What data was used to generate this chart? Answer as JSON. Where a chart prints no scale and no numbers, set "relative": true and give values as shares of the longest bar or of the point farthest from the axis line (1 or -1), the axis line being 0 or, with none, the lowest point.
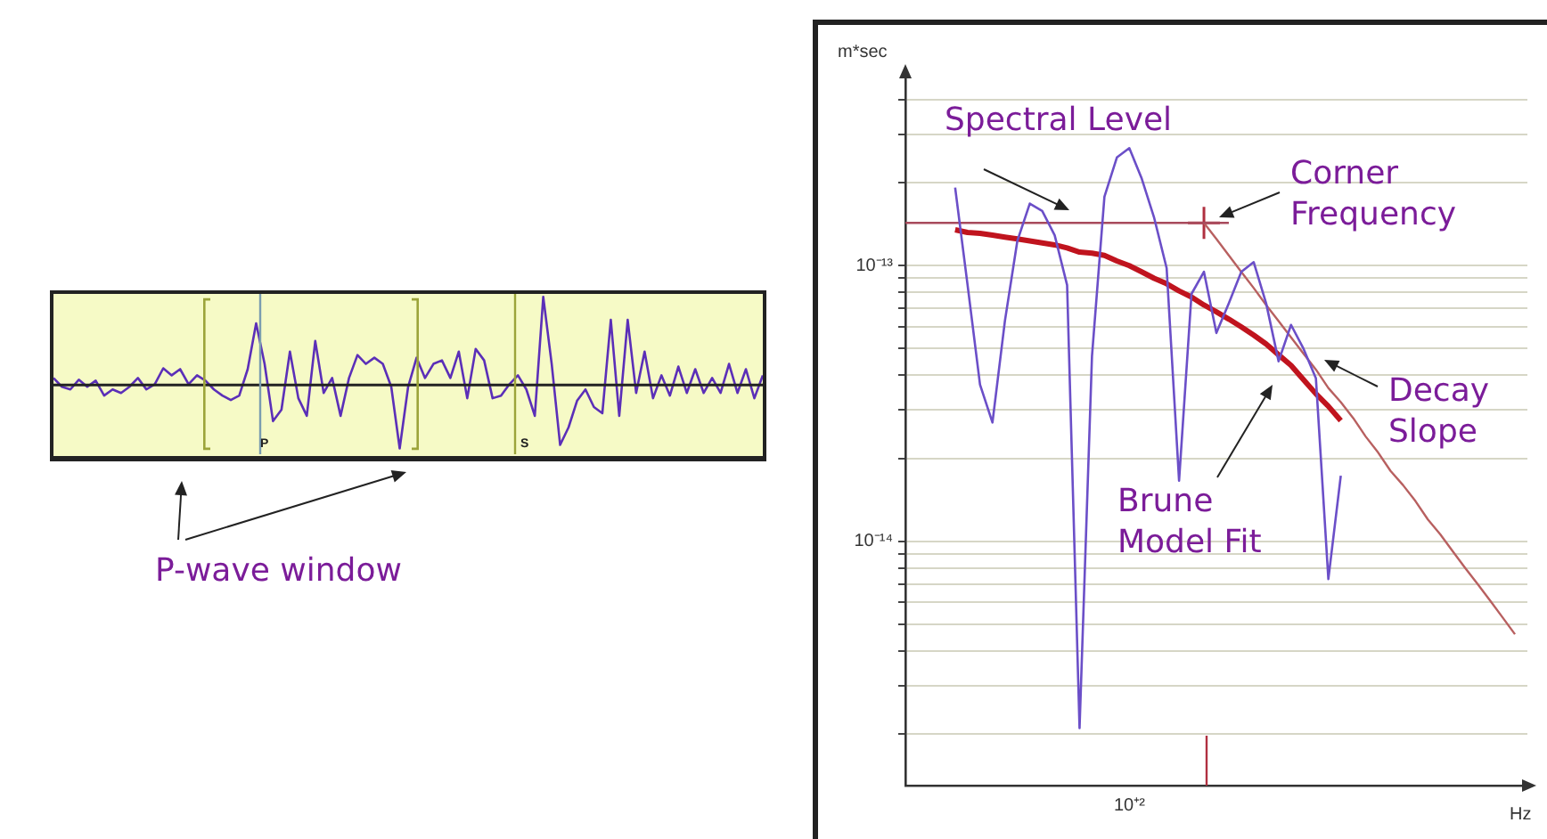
{
  "chart_data": [
    {
      "type": "line",
      "relative": true,
      "categories": [
        null,
        null,
        null,
        null,
        null,
        null,
        null,
        null,
        null,
        null,
        null,
        null,
        null,
        null,
        null,
        null,
        null,
        null,
        null,
        null,
        null,
        null,
        null,
        null,
        null,
        null,
        null,
        null,
        null,
        null,
        null,
        null,
        null,
        null,
        null,
        null,
        null,
        null,
        null,
        null,
        null,
        null,
        null,
        null,
        null,
        null,
        null,
        null,
        null,
        null,
        null,
        null,
        null,
        null,
        null,
        null,
        null,
        null,
        null,
        null,
        null,
        null,
        null,
        null,
        null,
        null,
        null,
        null,
        null,
        null,
        null,
        null,
        null,
        null,
        null,
        null,
        null,
        null,
        null,
        null,
        null,
        null,
        null,
        null,
        null
      ],
      "series": [
        {
          "color": "#5b2fb8",
          "values": [
            0.08,
            -0.02,
            -0.05,
            0.06,
            -0.02,
            0.05,
            -0.12,
            -0.05,
            -0.09,
            -0.02,
            0.08,
            -0.05,
            0.01,
            0.19,
            0.11,
            0.18,
            0.01,
            0.11,
            0.05,
            -0.05,
            -0.12,
            -0.17,
            -0.12,
            0.18,
            0.7,
            0.24,
            -0.41,
            -0.28,
            0.38,
            -0.15,
            -0.35,
            0.5,
            -0.09,
            0.08,
            -0.35,
            0.08,
            0.34,
            0.24,
            0.31,
            0.24,
            -0.02,
            -0.72,
            -0.02,
            0.31,
            0.08,
            0.24,
            0.28,
            0.08,
            0.38,
            -0.15,
            0.41,
            0.28,
            -0.15,
            -0.12,
            0.01,
            0.11,
            -0.05,
            -0.35,
            1,
            0.24,
            -0.68,
            -0.48,
            -0.18,
            -0.05,
            -0.25,
            -0.32,
            0.74,
            -0.35,
            0.74,
            -0.09,
            0.38,
            -0.15,
            0.11,
            -0.12,
            0.21,
            -0.09,
            0.18,
            -0.09,
            0.08,
            -0.09,
            0.24,
            -0.09,
            0.18,
            -0.15,
            0.11
          ]
        }
      ],
      "annotations": [
        "P-wave window",
        "P",
        "S"
      ]
    },
    {
      "type": "line",
      "log": "y",
      "xlabel": "Hz",
      "ylabel": "m*sec",
      "grid": "y",
      "tick_labels": "y",
      "categories": [
        null,
        null,
        null,
        null,
        null,
        null,
        null,
        null,
        null,
        null,
        null,
        null,
        null,
        null,
        null,
        null,
        null,
        null,
        null,
        null,
        null,
        null,
        null,
        null,
        null,
        null,
        null,
        null,
        null,
        null,
        null,
        null,
        null,
        null,
        null,
        null,
        null,
        null,
        null,
        null,
        null,
        null,
        null,
        null,
        null,
        null,
        null,
        null,
        null,
        null,
        null
      ],
      "ylim": [
        1.3e-15,
        5e-13
      ],
      "yticks": [
        {
          "value": 2e-15,
          "label": null
        },
        {
          "value": 3e-15,
          "label": null
        },
        {
          "value": 4e-15,
          "label": null
        },
        {
          "value": 5e-15,
          "label": null
        },
        {
          "value": 6e-15,
          "label": null
        },
        {
          "value": 7e-15,
          "label": null
        },
        {
          "value": 8e-15,
          "label": null
        },
        {
          "value": 9e-15,
          "label": null
        },
        {
          "value": 1e-14,
          "label": "10⁻¹⁴"
        },
        {
          "value": 2e-14,
          "label": null
        },
        {
          "value": 3e-14,
          "label": null
        },
        {
          "value": 4e-14,
          "label": null
        },
        {
          "value": 5e-14,
          "label": null
        },
        {
          "value": 6e-14,
          "label": null
        },
        {
          "value": 7e-14,
          "label": null
        },
        {
          "value": 8e-14,
          "label": null
        },
        {
          "value": 9e-14,
          "label": null
        },
        {
          "value": 1e-13,
          "label": "10⁻¹³"
        },
        {
          "value": 2e-13,
          "label": null
        },
        {
          "value": 3e-13,
          "label": null
        },
        {
          "value": 4e-13,
          "label": null
        }
      ],
      "series": [
        {
          "color": "#6b4fc8",
          "values": [
            null,
            null,
            null,
            null,
            1.92e-13,
            8.5e-14,
            3.7e-14,
            2.7e-14,
            6.3e-14,
            1.23e-13,
            1.68e-13,
            1.58e-13,
            1.29e-13,
            8.5e-14,
            2.1e-15,
            4.7e-14,
            1.78e-13,
            2.47e-13,
            2.67e-13,
            2.07e-13,
            1.49e-13,
            9.8e-14,
            1.66e-14,
            7.9e-14,
            9.5e-14,
            5.7e-14,
            7.3e-14,
            9.5e-14,
            1.03e-13,
            7.3e-14,
            4.5e-14,
            6.1e-14,
            5e-14,
            3.9e-14,
            7.3e-15,
            1.73e-14,
            null,
            null,
            null,
            null,
            null,
            null,
            null,
            null,
            null,
            null,
            null,
            null,
            null,
            null,
            null
          ]
        },
        {
          "color": "#c0141e",
          "values": [
            null,
            null,
            null,
            null,
            1.35e-13,
            1.32e-13,
            1.31e-13,
            1.29e-13,
            1.27e-13,
            1.25e-13,
            1.23e-13,
            1.21e-13,
            1.19e-13,
            1.16e-13,
            1.12e-13,
            1.11e-13,
            1.09e-13,
            1.04e-13,
            1e-13,
            9.5e-14,
            9e-14,
            8.6e-14,
            8.1e-14,
            7.7e-14,
            7.2e-14,
            6.8e-14,
            6.4e-14,
            6e-14,
            5.6e-14,
            5.2e-14,
            4.75e-14,
            4.35e-14,
            3.86e-14,
            3.43e-14,
            3.09e-14,
            2.74e-14,
            null,
            null,
            null,
            null,
            null,
            null,
            null,
            null,
            null,
            null,
            null,
            null,
            null,
            null,
            null
          ]
        },
        {
          "color": "#a84a5c",
          "values": [
            1.43e-13,
            1.43e-13,
            1.43e-13,
            1.43e-13,
            1.43e-13,
            1.43e-13,
            1.43e-13,
            1.43e-13,
            1.43e-13,
            1.43e-13,
            1.43e-13,
            1.43e-13,
            1.43e-13,
            1.43e-13,
            1.43e-13,
            1.43e-13,
            1.43e-13,
            1.43e-13,
            1.43e-13,
            1.43e-13,
            1.43e-13,
            1.43e-13,
            1.43e-13,
            1.43e-13,
            1.43e-13,
            1.43e-13,
            1.43e-13,
            null,
            null,
            null,
            null,
            null,
            null,
            null,
            null,
            null,
            null,
            null,
            null,
            null,
            null,
            null,
            null,
            null,
            null,
            null,
            null,
            null,
            null,
            null,
            null
          ]
        },
        {
          "color": "#b86060",
          "values": [
            null,
            null,
            null,
            null,
            null,
            null,
            null,
            null,
            null,
            null,
            null,
            null,
            null,
            null,
            null,
            null,
            null,
            null,
            null,
            null,
            null,
            null,
            null,
            null,
            1.43e-13,
            1.25e-13,
            1.09e-13,
            9.5e-14,
            8.3e-14,
            7.2e-14,
            6.3e-14,
            5.5e-14,
            4.8e-14,
            4.2e-14,
            3.6e-14,
            3.2e-14,
            2.8e-14,
            2.4e-14,
            2.1e-14,
            1.8e-14,
            1.6e-14,
            1.4e-14,
            1.2e-14,
            1.06e-14,
            9.2e-15,
            8e-15,
            7e-15,
            6.1e-15,
            5.3e-15,
            4.6e-15,
            null
          ]
        },
        {
          "type": "scatter",
          "marker": "cross",
          "color": "#b03040",
          "values": [
            null,
            null,
            null,
            null,
            null,
            null,
            null,
            null,
            null,
            null,
            null,
            null,
            null,
            null,
            null,
            null,
            null,
            null,
            null,
            null,
            null,
            null,
            null,
            null,
            1.43e-13,
            null,
            null,
            null,
            null,
            null,
            null,
            null,
            null,
            null,
            null,
            null,
            null,
            null,
            null,
            null,
            null,
            null,
            null,
            null,
            null,
            null,
            null,
            null,
            null,
            null,
            null
          ]
        }
      ],
      "annotations": [
        "Spectral Level",
        "Corner Frequency",
        "Decay Slope",
        "Brune Model Fit",
        "10⁺²"
      ]
    }
  ]
}
